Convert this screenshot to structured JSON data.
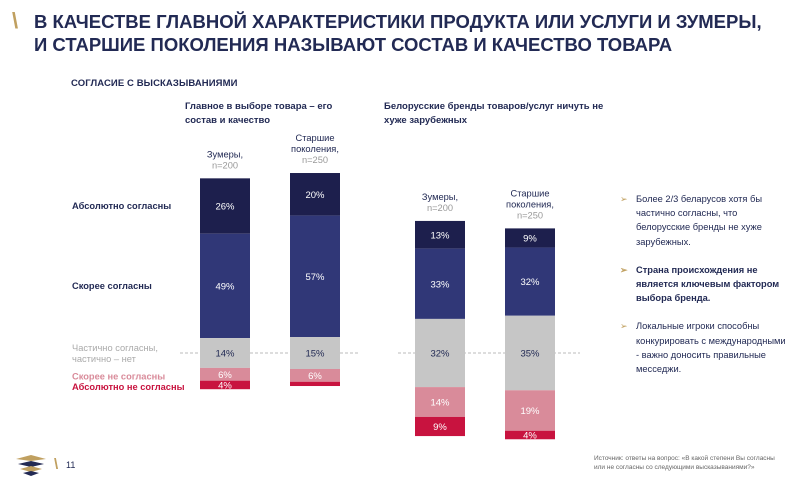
{
  "header": {
    "title": "В КАЧЕСТВЕ ГЛАВНОЙ ХАРАКТЕРИСТИКИ ПРОДУКТА ИЛИ УСЛУГИ И ЗУМЕРЫ, И СТАРШИЕ ПОКОЛЕНИЯ НАЗЫВАЮТ СОСТАВ И КАЧЕСТВО ТОВАРА",
    "section_label": "СОГЛАСИЕ С ВЫСКАЗЫВАНИЯМИ"
  },
  "colors": {
    "absolutely_agree": "#1d1f4d",
    "rather_agree": "#303777",
    "partially": "#c6c6c6",
    "rather_disagree": "#d98b9a",
    "absolutely_disagree": "#c8133f",
    "accent": "#c0a060",
    "navy": "#222a54"
  },
  "chart_data": [
    {
      "type": "bar",
      "stacked": true,
      "title": "Главное в выборе товара – его состав и качество",
      "categories": [
        "Зумеры,",
        "Старшие поколения,"
      ],
      "sample_sizes": [
        "n=200",
        "n=250"
      ],
      "series": [
        {
          "name": "Абсолютно согласны",
          "values": [
            26,
            20
          ],
          "color_key": "absolutely_agree"
        },
        {
          "name": "Скорее согласны",
          "values": [
            49,
            57
          ],
          "color_key": "rather_agree"
        },
        {
          "name": "Частично согласны, частично – нет",
          "values": [
            14,
            15
          ],
          "color_key": "partially"
        },
        {
          "name": "Скорее не согласны",
          "values": [
            6,
            6
          ],
          "color_key": "rather_disagree"
        },
        {
          "name": "Абсолютно не согласны",
          "values": [
            4,
            2
          ],
          "color_key": "absolutely_disagree"
        }
      ],
      "data_labels": [
        [
          "26%",
          "49%",
          "14%",
          "6%",
          "4%"
        ],
        [
          "20%",
          "57%",
          "15%",
          "6%",
          ""
        ]
      ],
      "baseline": "partial-midpoint"
    },
    {
      "type": "bar",
      "stacked": true,
      "title": "Белорусские бренды товаров/услуг ничуть не хуже зарубежных",
      "categories": [
        "Зумеры,",
        "Старшие поколения,"
      ],
      "sample_sizes": [
        "n=200",
        "n=250"
      ],
      "series": [
        {
          "name": "Абсолютно согласны",
          "values": [
            13,
            9
          ],
          "color_key": "absolutely_agree"
        },
        {
          "name": "Скорее согласны",
          "values": [
            33,
            32
          ],
          "color_key": "rather_agree"
        },
        {
          "name": "Частично согласны, частично – нет",
          "values": [
            32,
            35
          ],
          "color_key": "partially"
        },
        {
          "name": "Скорее не согласны",
          "values": [
            14,
            19
          ],
          "color_key": "rather_disagree"
        },
        {
          "name": "Абсолютно не согласны",
          "values": [
            9,
            4
          ],
          "color_key": "absolutely_disagree"
        }
      ],
      "data_labels": [
        [
          "13%",
          "33%",
          "32%",
          "14%",
          "9%"
        ],
        [
          "9%",
          "32%",
          "35%",
          "19%",
          "4%"
        ]
      ],
      "baseline": "partial-midpoint"
    }
  ],
  "legend_labels": {
    "absolutely_agree": "Абсолютно согласны",
    "rather_agree": "Скорее согласны",
    "partially_line1": "Частично согласны,",
    "partially_line2": "частично – нет",
    "rather_disagree": "Скорее не согласны",
    "absolutely_disagree": "Абсолютно не согласны"
  },
  "category_lines": {
    "zoomers": [
      "Зумеры,"
    ],
    "older": [
      "Старшие",
      "поколения,"
    ]
  },
  "bullets": [
    {
      "text": "Более 2/3 беларусов хотя бы частично согласны, что белорусские бренды не хуже зарубежных.",
      "bold": false
    },
    {
      "text": "Страна происхождения не является ключевым фактором выбора бренда.",
      "bold": true
    },
    {
      "text": "Локальные игроки способны конкурировать с международными - важно доносить правильные месседжи.",
      "bold": false
    }
  ],
  "bullet_marker": "➢",
  "footer": {
    "source": "Источник: ответы на вопрос: «В какой степени Вы согласны или не согласны со следующими высказываниями?»",
    "page_number": "11",
    "logo_icon": "company-logo"
  }
}
